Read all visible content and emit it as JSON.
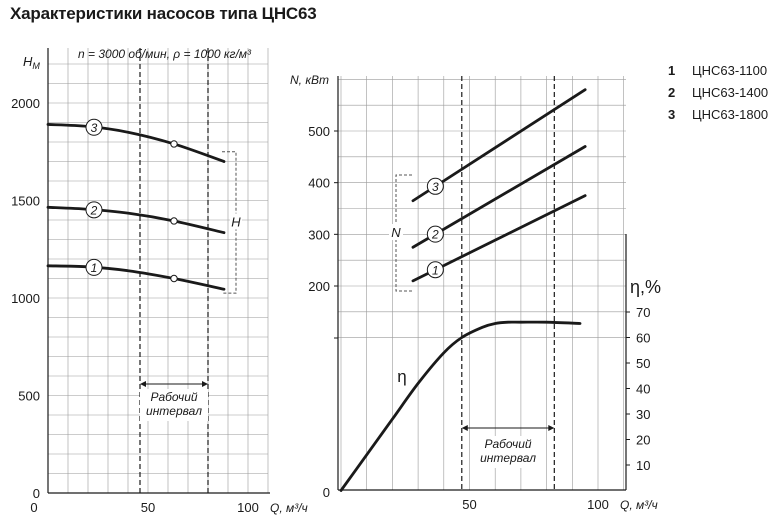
{
  "title": "Характеристики насосов типа ЦНС63",
  "chart_data": [
    {
      "type": "line",
      "subtitle": "n = 3000 об/мин, ρ = 1000 кг/м³",
      "ylabel": "Hм",
      "xlabel": "Q, м³/ч",
      "xlim": [
        0,
        110
      ],
      "ylim": [
        0,
        2000
      ],
      "xticks": [
        0,
        50,
        100
      ],
      "yticks": [
        0,
        500,
        1000,
        1500,
        2000
      ],
      "grid": true,
      "working_interval": {
        "label_line1": "Рабочий",
        "label_line2": "интервал",
        "from": 46,
        "to": 80
      },
      "bracket_label": "H",
      "series": [
        {
          "name": "1",
          "x": [
            0,
            20,
            40,
            63,
            88
          ],
          "y": [
            1165,
            1160,
            1140,
            1100,
            1045
          ],
          "marker_x": 63,
          "marker_y": 1100
        },
        {
          "name": "2",
          "x": [
            0,
            20,
            40,
            63,
            88
          ],
          "y": [
            1465,
            1455,
            1435,
            1395,
            1335
          ],
          "marker_x": 63,
          "marker_y": 1395
        },
        {
          "name": "3",
          "x": [
            0,
            20,
            40,
            63,
            88
          ],
          "y": [
            1890,
            1880,
            1850,
            1790,
            1700
          ],
          "marker_x": 63,
          "marker_y": 1790
        }
      ]
    },
    {
      "type": "line",
      "ylabel": "N, кВт",
      "xlabel": "Q, м³/ч",
      "xlim": [
        0,
        105
      ],
      "ylim": [
        0,
        800
      ],
      "yticks": [
        200,
        300,
        400,
        500
      ],
      "xticks": [
        0,
        50,
        100
      ],
      "grid": true,
      "bracket_label": "N",
      "working_interval": {
        "label_line1": "Рабочий",
        "label_line2": "интервал",
        "from": 47,
        "to": 83
      },
      "series": [
        {
          "name": "1",
          "x": [
            28,
            95
          ],
          "y": [
            210,
            375
          ]
        },
        {
          "name": "2",
          "x": [
            28,
            95
          ],
          "y": [
            275,
            470
          ]
        },
        {
          "name": "3",
          "x": [
            28,
            95
          ],
          "y": [
            365,
            580
          ]
        }
      ]
    },
    {
      "type": "line",
      "ylabel": "η,%",
      "ylim": [
        0,
        80
      ],
      "yticks": [
        10,
        20,
        30,
        40,
        50,
        60,
        70
      ],
      "series": [
        {
          "name": "η",
          "x": [
            0,
            10,
            20,
            30,
            40,
            47,
            55,
            60,
            65,
            70,
            80,
            93
          ],
          "y": [
            0,
            14,
            28,
            42,
            54,
            60,
            64,
            65.5,
            66,
            66,
            66,
            65.5
          ]
        }
      ]
    }
  ],
  "legend": [
    {
      "num": "1",
      "name": "ЦНС63-1100"
    },
    {
      "num": "2",
      "name": "ЦНС63-1400"
    },
    {
      "num": "3",
      "name": "ЦНС63-1800"
    }
  ]
}
